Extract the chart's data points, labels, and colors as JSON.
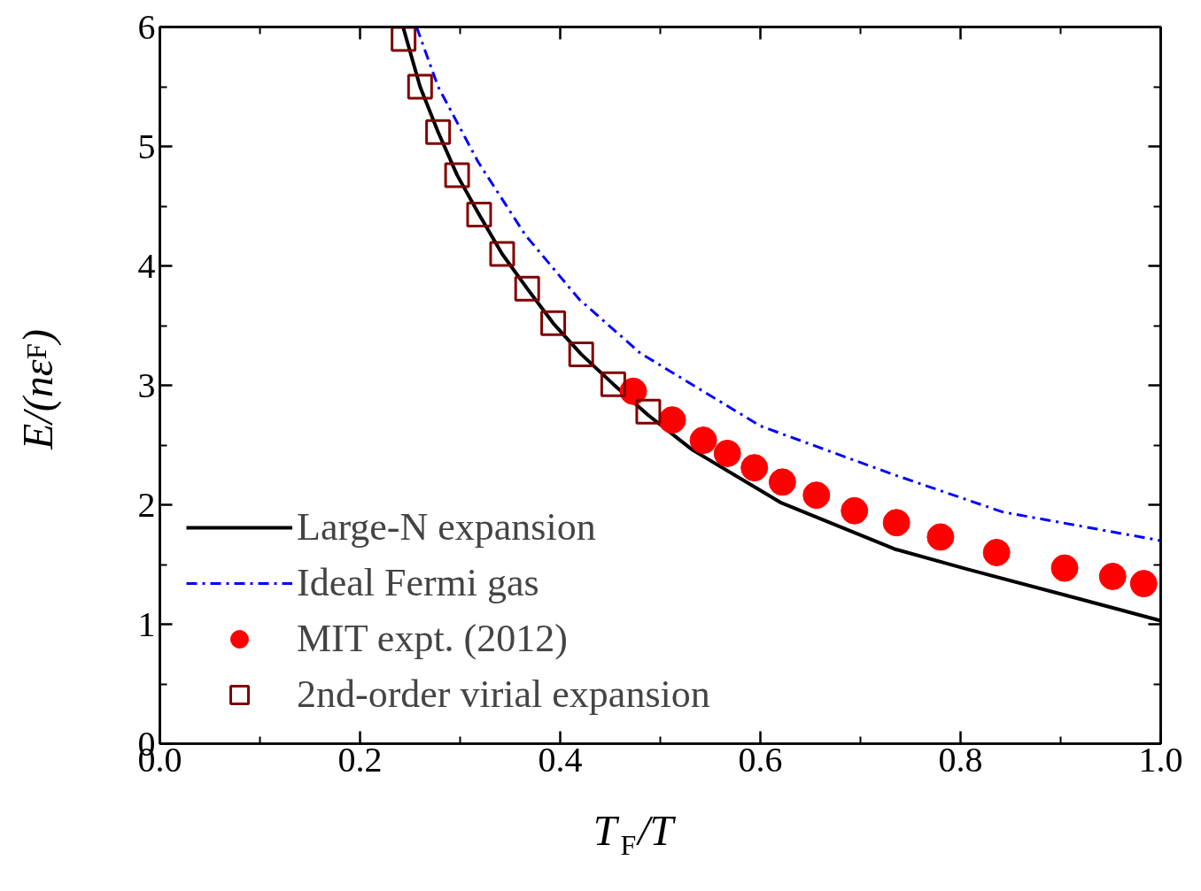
{
  "chart_data": {
    "type": "line",
    "xlabel": "T$_{F}$/T",
    "ylabel": "E/(nε$_{F}$)",
    "xlim": [
      0,
      1
    ],
    "ylim": [
      0,
      6
    ],
    "xticks": [
      {
        "value": 0,
        "label": "0.0"
      },
      {
        "value": 0.2,
        "label": "0.2"
      },
      {
        "value": 0.4,
        "label": "0.4"
      },
      {
        "value": 0.6,
        "label": "0.6"
      },
      {
        "value": 0.8,
        "label": "0.8"
      },
      {
        "value": 1.0,
        "label": "1.0"
      }
    ],
    "yticks": [
      0,
      1,
      2,
      3,
      4,
      5,
      6
    ],
    "grid": false,
    "legend": "bottom left",
    "series": [
      {
        "name": "Large-N expansion",
        "color": "#000000",
        "line_style": "solid",
        "x": [
          0.243,
          0.26,
          0.278,
          0.297,
          0.319,
          0.342,
          0.367,
          0.393,
          0.421,
          0.453,
          0.488,
          0.532,
          0.62,
          0.734,
          0.807,
          0.915,
          1.0
        ],
        "values": [
          6.0,
          5.5,
          5.12,
          4.76,
          4.43,
          4.1,
          3.81,
          3.52,
          3.26,
          3.01,
          2.75,
          2.46,
          2.02,
          1.63,
          1.46,
          1.22,
          1.03
        ]
      },
      {
        "name": "Ideal Fermi gas",
        "color": "#0000ff",
        "line_style": "dashdot",
        "x": [
          0.2565,
          0.278,
          0.318,
          0.365,
          0.419,
          0.48,
          0.6,
          0.734,
          0.842,
          1.0
        ],
        "values": [
          6.0,
          5.5,
          4.87,
          4.26,
          3.72,
          3.27,
          2.66,
          2.25,
          1.94,
          1.7
        ]
      },
      {
        "name": "MIT expt. (2012)",
        "type": "scatter",
        "marker": "circle",
        "color": "#ff0000",
        "x": [
          0.473,
          0.512,
          0.543,
          0.567,
          0.594,
          0.622,
          0.656,
          0.694,
          0.736,
          0.78,
          0.836,
          0.904,
          0.952,
          0.983
        ],
        "values": [
          2.95,
          2.71,
          2.54,
          2.43,
          2.31,
          2.19,
          2.08,
          1.95,
          1.85,
          1.73,
          1.6,
          1.47,
          1.4,
          1.34
        ]
      },
      {
        "name": "2nd-order virial expansion",
        "type": "scatter",
        "marker": "square",
        "color": "#800000",
        "x": [
          0.2435,
          0.26,
          0.278,
          0.297,
          0.319,
          0.342,
          0.367,
          0.393,
          0.421,
          0.453,
          0.488
        ],
        "values": [
          5.9,
          5.5,
          5.12,
          4.76,
          4.43,
          4.1,
          3.81,
          3.52,
          3.26,
          3.01,
          2.78
        ]
      }
    ]
  }
}
